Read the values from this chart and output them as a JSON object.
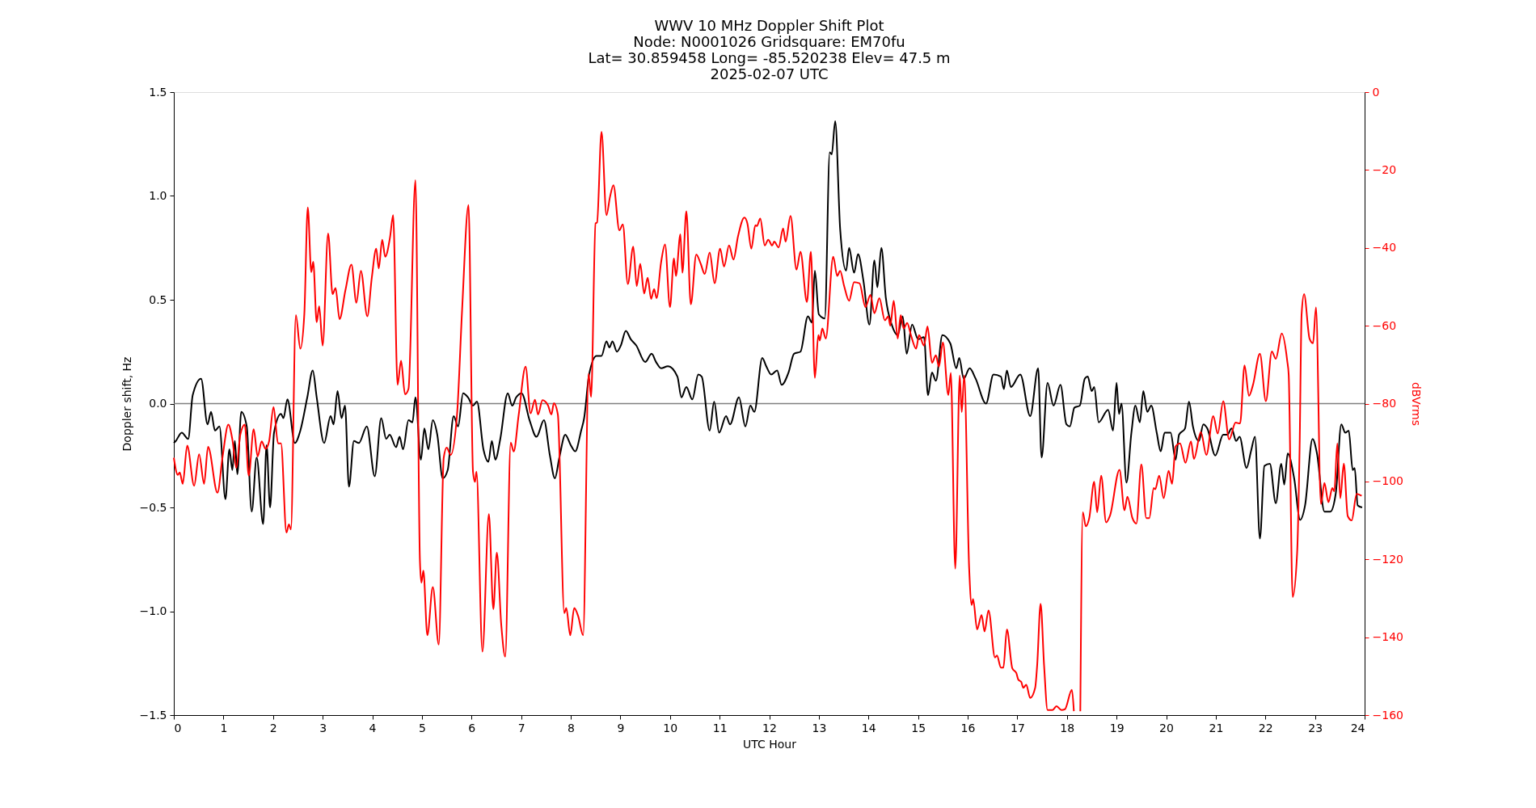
{
  "chart_data": {
    "type": "line",
    "title": "WWV 10 MHz Doppler Shift Plot\nNode:  N0001026     Gridsquare:  EM70fu\nLat= 30.859458    Long= -85.520238    Elev= 47.5 m\n2025-02-07  UTC",
    "xlabel": "UTC Hour",
    "ylabel": "Doppler shift, Hz",
    "y2label": "dBVrms",
    "xlim": [
      0,
      24
    ],
    "xticks": [
      0,
      1,
      2,
      3,
      4,
      5,
      6,
      7,
      8,
      9,
      10,
      11,
      12,
      13,
      14,
      15,
      16,
      17,
      18,
      19,
      20,
      21,
      22,
      23,
      24
    ],
    "ylim": [
      -1.5,
      1.5
    ],
    "yticks": [
      {
        "value": -1.5,
        "label": "−1.5"
      },
      {
        "value": -1.0,
        "label": "−1.0"
      },
      {
        "value": -0.5,
        "label": "−0.5"
      },
      {
        "value": 0,
        "label": "0.0"
      },
      {
        "value": 0.5,
        "label": "0.5"
      },
      {
        "value": 1.0,
        "label": "1.0"
      },
      {
        "value": 1.5,
        "label": "1.5"
      }
    ],
    "y2lim": [
      -160,
      0
    ],
    "y2ticks": [
      {
        "value": -160,
        "label": "−160"
      },
      {
        "value": -140,
        "label": "−140"
      },
      {
        "value": -120,
        "label": "−120"
      },
      {
        "value": -100,
        "label": "−100"
      },
      {
        "value": -80,
        "label": "−80"
      },
      {
        "value": -60,
        "label": "−60"
      },
      {
        "value": -40,
        "label": "−40"
      },
      {
        "value": -20,
        "label": "−20"
      },
      {
        "value": 0,
        "label": "0"
      }
    ],
    "grid": false,
    "line_style": "solid",
    "marker": "none",
    "ref_lines": [
      {
        "axis": "y",
        "value": 0,
        "color": "#808080"
      }
    ],
    "series": [
      {
        "color": "#000000",
        "axis": "y",
        "x": [
          0,
          0.04,
          0.16,
          0.29,
          0.38,
          0.55,
          0.68,
          0.75,
          0.83,
          0.92,
          1.04,
          1.12,
          1.18,
          1.23,
          1.28,
          1.36,
          1.47,
          1.57,
          1.67,
          1.8,
          1.87,
          1.94,
          2.02,
          2.16,
          2.21,
          2.29,
          2.44,
          2.55,
          2.69,
          2.8,
          2.88,
          3.03,
          3.16,
          3.22,
          3.3,
          3.38,
          3.45,
          3.53,
          3.63,
          3.73,
          3.89,
          4.05,
          4.18,
          4.28,
          4.35,
          4.48,
          4.55,
          4.62,
          4.73,
          4.81,
          4.87,
          4.98,
          5.05,
          5.13,
          5.22,
          5.31,
          5.42,
          5.52,
          5.64,
          5.73,
          5.83,
          5.93,
          6.03,
          6.11,
          6.24,
          6.34,
          6.41,
          6.48,
          6.58,
          6.73,
          6.82,
          6.9,
          7.01,
          7.17,
          7.31,
          7.46,
          7.58,
          7.68,
          7.77,
          7.89,
          8.0,
          8.09,
          8.21,
          8.27,
          8.37,
          8.52,
          8.62,
          8.72,
          8.78,
          8.84,
          8.93,
          9.01,
          9.11,
          9.21,
          9.32,
          9.5,
          9.63,
          9.72,
          9.82,
          9.96,
          10.15,
          10.23,
          10.33,
          10.45,
          10.57,
          10.64,
          10.8,
          10.89,
          10.99,
          11.13,
          11.21,
          11.39,
          11.52,
          11.62,
          11.7,
          11.86,
          11.94,
          12.04,
          12.16,
          12.25,
          12.39,
          12.5,
          12.63,
          12.78,
          12.86,
          12.92,
          13.0,
          13.12,
          13.22,
          13.26,
          13.33,
          13.43,
          13.55,
          13.61,
          13.71,
          13.79,
          13.9,
          14.02,
          14.12,
          14.18,
          14.26,
          14.35,
          14.47,
          14.59,
          14.69,
          14.77,
          14.88,
          15.0,
          15.12,
          15.2,
          15.28,
          15.36,
          15.49,
          15.65,
          15.77,
          15.83,
          15.92,
          16.04,
          16.16,
          16.37,
          16.52,
          16.67,
          16.73,
          16.79,
          16.87,
          17.06,
          17.26,
          17.42,
          17.49,
          17.61,
          17.73,
          17.87,
          17.99,
          18.06,
          18.15,
          18.26,
          18.36,
          18.42,
          18.5,
          18.55,
          18.64,
          18.83,
          18.93,
          19.0,
          19.05,
          19.1,
          19.2,
          19.3,
          19.38,
          19.47,
          19.54,
          19.62,
          19.7,
          19.81,
          19.89,
          19.97,
          20.09,
          20.19,
          20.26,
          20.38,
          20.46,
          20.54,
          20.66,
          20.75,
          20.83,
          20.99,
          21.15,
          21.23,
          21.32,
          21.41,
          21.48,
          21.62,
          21.71,
          21.79,
          21.89,
          21.98,
          22.09,
          22.21,
          22.32,
          22.38,
          22.45,
          22.58,
          22.7,
          22.8,
          22.95,
          23.04,
          23.19,
          23.31,
          23.42,
          23.53,
          23.61,
          23.68,
          23.76,
          23.8,
          23.86,
          23.95
        ],
        "values": [
          -0.19,
          -0.18,
          -0.14,
          -0.17,
          0.04,
          0.12,
          -0.1,
          -0.04,
          -0.13,
          -0.11,
          -0.46,
          -0.22,
          -0.32,
          -0.18,
          -0.34,
          -0.04,
          -0.11,
          -0.52,
          -0.26,
          -0.58,
          -0.2,
          -0.5,
          -0.14,
          -0.05,
          -0.07,
          0.02,
          -0.19,
          -0.13,
          0.03,
          0.16,
          0.03,
          -0.19,
          -0.06,
          -0.1,
          0.06,
          -0.07,
          -0.01,
          -0.4,
          -0.18,
          -0.19,
          -0.11,
          -0.35,
          -0.07,
          -0.17,
          -0.15,
          -0.21,
          -0.16,
          -0.22,
          -0.08,
          -0.09,
          0.03,
          -0.27,
          -0.12,
          -0.22,
          -0.08,
          -0.15,
          -0.36,
          -0.32,
          -0.06,
          -0.11,
          0.05,
          0.03,
          -0.01,
          0.01,
          -0.22,
          -0.28,
          -0.18,
          -0.27,
          -0.17,
          0.05,
          -0.01,
          0.03,
          0.05,
          -0.08,
          -0.16,
          -0.08,
          -0.25,
          -0.36,
          -0.26,
          -0.15,
          -0.2,
          -0.23,
          -0.13,
          -0.07,
          0.14,
          0.23,
          0.23,
          0.3,
          0.27,
          0.3,
          0.25,
          0.28,
          0.35,
          0.31,
          0.28,
          0.2,
          0.24,
          0.2,
          0.17,
          0.18,
          0.13,
          0.03,
          0.08,
          0.02,
          0.14,
          0.13,
          -0.13,
          0.01,
          -0.14,
          -0.06,
          -0.1,
          0.03,
          -0.11,
          -0.01,
          -0.04,
          0.22,
          0.18,
          0.14,
          0.16,
          0.09,
          0.15,
          0.24,
          0.25,
          0.42,
          0.39,
          0.64,
          0.43,
          0.41,
          1.21,
          1.2,
          1.36,
          0.84,
          0.64,
          0.75,
          0.63,
          0.72,
          0.59,
          0.38,
          0.69,
          0.56,
          0.75,
          0.51,
          0.38,
          0.33,
          0.42,
          0.24,
          0.38,
          0.31,
          0.32,
          0.04,
          0.15,
          0.11,
          0.33,
          0.29,
          0.17,
          0.22,
          0.12,
          0.17,
          0.12,
          0.0,
          0.14,
          0.13,
          0.07,
          0.16,
          0.08,
          0.14,
          -0.06,
          0.17,
          -0.26,
          0.1,
          -0.01,
          0.09,
          -0.1,
          -0.11,
          -0.02,
          -0.01,
          0.12,
          0.13,
          0.06,
          0.08,
          -0.09,
          -0.03,
          -0.13,
          0.1,
          -0.05,
          0.0,
          -0.38,
          -0.14,
          -0.01,
          -0.09,
          0.06,
          -0.04,
          -0.01,
          -0.14,
          -0.23,
          -0.14,
          -0.14,
          -0.27,
          -0.15,
          -0.12,
          0.01,
          -0.11,
          -0.18,
          -0.1,
          -0.12,
          -0.25,
          -0.15,
          -0.15,
          -0.12,
          -0.18,
          -0.16,
          -0.31,
          -0.23,
          -0.16,
          -0.65,
          -0.3,
          -0.29,
          -0.48,
          -0.29,
          -0.39,
          -0.24,
          -0.36,
          -0.56,
          -0.49,
          -0.17,
          -0.24,
          -0.52,
          -0.52,
          -0.43,
          -0.1,
          -0.14,
          -0.13,
          -0.32,
          -0.31,
          -0.49,
          -0.5
        ]
      },
      {
        "color": "#ff0000",
        "axis": "y2",
        "x": [
          0.0,
          0.08,
          0.12,
          0.18,
          0.27,
          0.41,
          0.51,
          0.61,
          0.69,
          0.88,
          0.98,
          1.1,
          1.18,
          1.26,
          1.34,
          1.43,
          1.51,
          1.61,
          1.69,
          1.77,
          1.85,
          1.92,
          2.01,
          2.1,
          2.16,
          2.27,
          2.32,
          2.36,
          2.46,
          2.55,
          2.63,
          2.7,
          2.77,
          2.81,
          2.88,
          2.93,
          3.0,
          3.11,
          3.2,
          3.26,
          3.34,
          3.46,
          3.58,
          3.68,
          3.77,
          3.9,
          3.99,
          4.08,
          4.13,
          4.2,
          4.26,
          4.36,
          4.42,
          4.51,
          4.58,
          4.66,
          4.73,
          4.87,
          4.96,
          4.99,
          5.03,
          5.11,
          5.22,
          5.34,
          5.44,
          5.5,
          5.58,
          5.71,
          5.81,
          5.94,
          6.03,
          6.07,
          6.1,
          6.22,
          6.35,
          6.44,
          6.51,
          6.6,
          6.68,
          6.79,
          6.85,
          6.95,
          7.09,
          7.19,
          7.28,
          7.34,
          7.43,
          7.54,
          7.61,
          7.66,
          7.74,
          7.87,
          7.91,
          7.99,
          8.07,
          8.15,
          8.25,
          8.36,
          8.41,
          8.5,
          8.53,
          8.62,
          8.72,
          8.79,
          8.86,
          8.98,
          9.05,
          9.15,
          9.26,
          9.33,
          9.4,
          9.48,
          9.55,
          9.62,
          9.68,
          9.73,
          9.82,
          9.9,
          10.0,
          10.08,
          10.12,
          10.21,
          10.25,
          10.33,
          10.42,
          10.53,
          10.62,
          10.7,
          10.8,
          10.9,
          11.01,
          11.09,
          11.19,
          11.28,
          11.37,
          11.5,
          11.56,
          11.64,
          11.72,
          11.75,
          11.82,
          11.91,
          11.98,
          12.06,
          12.1,
          12.19,
          12.28,
          12.33,
          12.43,
          12.55,
          12.63,
          12.76,
          12.84,
          12.92,
          12.99,
          13.02,
          13.07,
          13.14,
          13.29,
          13.37,
          13.43,
          13.51,
          13.61,
          13.71,
          13.82,
          13.94,
          14.04,
          14.12,
          14.22,
          14.33,
          14.4,
          14.44,
          14.51,
          14.59,
          14.65,
          14.71,
          14.78,
          14.86,
          14.96,
          15.02,
          15.12,
          15.19,
          15.28,
          15.36,
          15.42,
          15.5,
          15.61,
          15.66,
          15.75,
          15.84,
          15.88,
          15.93,
          16.03,
          16.08,
          16.11,
          16.19,
          16.28,
          16.34,
          16.42,
          16.55,
          16.59,
          16.67,
          16.72,
          16.79,
          16.9,
          16.98,
          17.02,
          17.08,
          17.12,
          17.18,
          17.26,
          17.36,
          17.4,
          17.47,
          17.54,
          17.61,
          17.71,
          17.79,
          17.89,
          17.96,
          18.1,
          18.14,
          18.2,
          18.27,
          18.32,
          18.38,
          18.45,
          18.55,
          18.61,
          18.69,
          18.79,
          18.87,
          19.06,
          19.16,
          19.22,
          19.32,
          19.4,
          19.5,
          19.6,
          19.66,
          19.75,
          19.78,
          19.86,
          19.95,
          20.05,
          20.12,
          20.19,
          20.28,
          20.39,
          20.5,
          20.56,
          20.7,
          20.81,
          20.95,
          21.04,
          21.15,
          21.27,
          21.4,
          21.49,
          21.58,
          21.67,
          21.75,
          21.89,
          22.01,
          22.13,
          22.21,
          22.33,
          22.44,
          22.47,
          22.55,
          22.64,
          22.69,
          22.73,
          22.78,
          22.89,
          22.96,
          23.02,
          23.12,
          23.19,
          23.27,
          23.35,
          23.39,
          23.45,
          23.51,
          23.58,
          23.66,
          23.74,
          23.84,
          23.94
        ],
        "values": [
          -93.9,
          -98.3,
          -97.7,
          -100.6,
          -90.8,
          -101.1,
          -93.0,
          -100.6,
          -91.1,
          -102.9,
          -93.9,
          -85.4,
          -89.2,
          -96.5,
          -88.0,
          -85.4,
          -98.5,
          -86.6,
          -93.6,
          -89.7,
          -91.6,
          -89.7,
          -80.9,
          -90.2,
          -90.2,
          -113.1,
          -111.0,
          -112.3,
          -57.3,
          -65.9,
          -57.1,
          -29.6,
          -46.2,
          -43.6,
          -59.1,
          -55.0,
          -65.1,
          -36.3,
          -51.9,
          -50.3,
          -58.3,
          -50.8,
          -44.3,
          -54.1,
          -45.9,
          -57.6,
          -47.7,
          -40.2,
          -45.3,
          -37.9,
          -42.3,
          -37.1,
          -31.6,
          -75.2,
          -69.0,
          -77.6,
          -76.2,
          -22.6,
          -120.3,
          -126.0,
          -122.9,
          -139.5,
          -127.1,
          -141.9,
          -93.9,
          -91.3,
          -93.2,
          -82.5,
          -56.0,
          -29.0,
          -97.5,
          -100.1,
          -97.5,
          -143.7,
          -108.4,
          -132.8,
          -118.3,
          -136.9,
          -145.0,
          -90.0,
          -92.3,
          -83.0,
          -70.5,
          -82.5,
          -79.0,
          -82.8,
          -79.1,
          -80.4,
          -82.8,
          -79.9,
          -82.8,
          -133.8,
          -132.5,
          -139.5,
          -132.5,
          -134.6,
          -139.5,
          -72.3,
          -78.3,
          -33.7,
          -33.5,
          -10.2,
          -31.6,
          -27.0,
          -23.9,
          -35.5,
          -34.0,
          -49.3,
          -39.7,
          -49.8,
          -44.1,
          -51.7,
          -47.7,
          -53.1,
          -50.6,
          -52.9,
          -43.8,
          -39.1,
          -55.2,
          -42.7,
          -47.2,
          -36.5,
          -46.4,
          -30.6,
          -54.5,
          -41.7,
          -44.1,
          -46.7,
          -41.2,
          -49.1,
          -40.2,
          -44.8,
          -39.4,
          -43.0,
          -37.1,
          -32.2,
          -33.7,
          -40.2,
          -34.2,
          -34.4,
          -32.5,
          -39.4,
          -37.9,
          -39.4,
          -38.4,
          -39.9,
          -35.0,
          -38.4,
          -31.8,
          -45.6,
          -41.0,
          -53.9,
          -41.0,
          -73.4,
          -62.4,
          -63.8,
          -60.7,
          -63.3,
          -42.3,
          -47.2,
          -45.9,
          -49.8,
          -53.6,
          -48.8,
          -49.1,
          -55.2,
          -52.1,
          -56.8,
          -52.9,
          -58.6,
          -57.6,
          -60.0,
          -53.6,
          -63.3,
          -57.3,
          -60.7,
          -59.3,
          -62.6,
          -65.9,
          -62.4,
          -65.1,
          -60.2,
          -69.5,
          -67.6,
          -70.5,
          -64.3,
          -77.8,
          -72.1,
          -122.4,
          -72.8,
          -82.2,
          -72.8,
          -122.4,
          -131.7,
          -130.2,
          -138.0,
          -134.3,
          -138.5,
          -133.1,
          -145.2,
          -144.7,
          -147.8,
          -147.8,
          -138.0,
          -148.0,
          -149.2,
          -150.9,
          -151.5,
          -153.0,
          -152.2,
          -155.6,
          -153.0,
          -147.3,
          -131.4,
          -147.3,
          -158.7,
          -158.7,
          -157.7,
          -158.7,
          -158.5,
          -153.5,
          -159.0,
          null,
          -159.0,
          -107.9,
          -111.5,
          -109.4,
          -100.1,
          -107.9,
          -98.5,
          -110.5,
          -108.7,
          -97.0,
          -107.4,
          -103.9,
          -109.4,
          -110.8,
          -95.6,
          -109.4,
          -109.4,
          -101.7,
          -102.0,
          -98.5,
          -104.3,
          -97.3,
          -100.6,
          -91.0,
          -90.2,
          -95.2,
          -89.7,
          -94.2,
          -87.3,
          -93.2,
          -83.2,
          -87.7,
          -79.4,
          -89.2,
          -84.9,
          -85.1,
          -70.2,
          -78.0,
          -75.2,
          -67.2,
          -79.4,
          -66.6,
          -68.5,
          -62.0,
          -69.0,
          -72.6,
          -129.7,
          -118.3,
          -91.3,
          -57.1,
          -51.9,
          -63.3,
          -64.5,
          -55.3,
          -105.8,
          -100.4,
          -105.3,
          -101.7,
          -102.5,
          -90.2,
          -104.3,
          -95.4,
          -108.9,
          -110.0,
          -103.2,
          -103.7
        ]
      }
    ]
  }
}
